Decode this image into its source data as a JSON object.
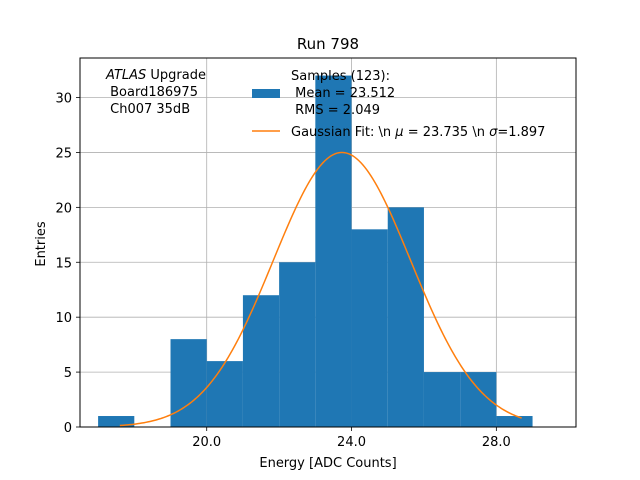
{
  "chart_data": {
    "type": "bar",
    "subtype": "histogram",
    "title": "Run 798",
    "xlabel": "Energy [ADC Counts]",
    "ylabel": "Entries",
    "xlim": [
      16.5,
      30.2
    ],
    "ylim": [
      0,
      33.6
    ],
    "grid": true,
    "xticks": [
      20.0,
      24.0,
      28.0
    ],
    "xtick_labels": [
      "20.0",
      "24.0",
      "28.0"
    ],
    "yticks": [
      0,
      5,
      10,
      15,
      20,
      25,
      30
    ],
    "ytick_labels": [
      "0",
      "5",
      "10",
      "15",
      "20",
      "25",
      "30"
    ],
    "bins": [
      {
        "x0": 17.0,
        "x1": 18.0,
        "count": 1
      },
      {
        "x0": 18.0,
        "x1": 19.0,
        "count": 0
      },
      {
        "x0": 19.0,
        "x1": 20.0,
        "count": 8
      },
      {
        "x0": 20.0,
        "x1": 21.0,
        "count": 6
      },
      {
        "x0": 21.0,
        "x1": 22.0,
        "count": 12
      },
      {
        "x0": 22.0,
        "x1": 23.0,
        "count": 15
      },
      {
        "x0": 23.0,
        "x1": 24.0,
        "count": 32
      },
      {
        "x0": 24.0,
        "x1": 25.0,
        "count": 18
      },
      {
        "x0": 25.0,
        "x1": 26.0,
        "count": 20
      },
      {
        "x0": 26.0,
        "x1": 27.0,
        "count": 5
      },
      {
        "x0": 27.0,
        "x1": 28.0,
        "count": 5
      },
      {
        "x0": 28.0,
        "x1": 29.0,
        "count": 1
      }
    ],
    "fit": {
      "mu": 23.735,
      "sigma": 1.897,
      "amplitude": 25.0,
      "x_start": 17.6,
      "x_end": 28.7
    },
    "series_colors": {
      "histogram": "#1f77b4",
      "fit": "#ff7f0e"
    },
    "annotation": {
      "italic": "ATLAS",
      "line1_rest": " Upgrade",
      "line2": " Board186975",
      "line3": " Ch007 35dB"
    },
    "legend": {
      "placement": "top-right",
      "histogram_lines": [
        "Samples (123):",
        " Mean = 23.512",
        " RMS = 2.049"
      ],
      "fit_label_parts": {
        "a": "Gaussian Fit: \\n ",
        "mu_sym": "μ",
        "b": " = 23.735 \\n ",
        "sigma_sym": "σ",
        "c": "=1.897"
      }
    }
  }
}
